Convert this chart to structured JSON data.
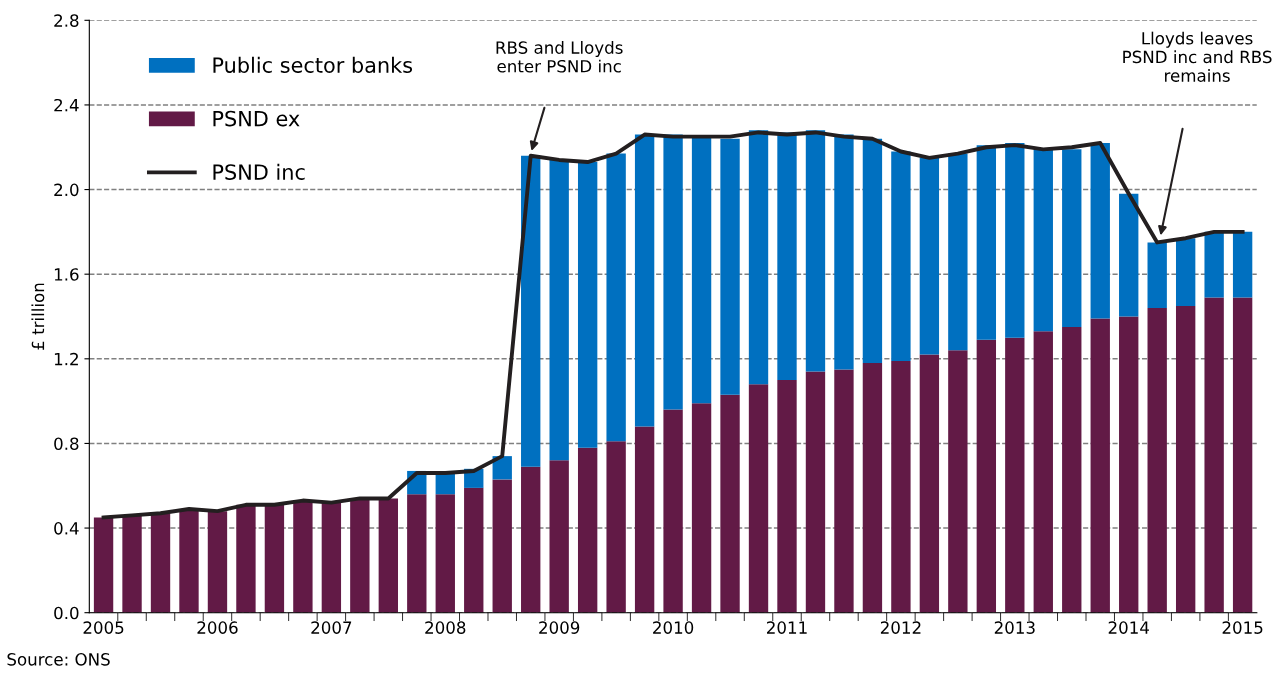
{
  "chart_data": {
    "type": "bar",
    "stacked": true,
    "ylabel": "£ trillion",
    "categories": [
      "2005",
      null,
      null,
      null,
      "2006",
      null,
      null,
      null,
      "2007",
      null,
      null,
      null,
      "2008",
      null,
      null,
      null,
      "2009",
      null,
      null,
      null,
      "2010",
      null,
      null,
      null,
      "2011",
      null,
      null,
      null,
      "2012",
      null,
      null,
      null,
      "2013",
      null,
      null,
      null,
      "2014",
      null,
      null,
      null,
      "2015"
    ],
    "series": [
      {
        "name": "PSND ex",
        "color": "#621a46",
        "values": [
          0.45,
          0.46,
          0.47,
          0.49,
          0.48,
          0.51,
          0.51,
          0.53,
          0.52,
          0.54,
          0.54,
          0.56,
          0.56,
          0.59,
          0.63,
          0.69,
          0.72,
          0.78,
          0.81,
          0.88,
          0.96,
          0.99,
          1.03,
          1.08,
          1.1,
          1.14,
          1.15,
          1.18,
          1.19,
          1.22,
          1.24,
          1.29,
          1.3,
          1.33,
          1.35,
          1.39,
          1.4,
          1.44,
          1.45,
          1.49,
          1.49
        ]
      },
      {
        "name": "Public sector banks",
        "color": "#0070c0",
        "values": [
          null,
          null,
          null,
          null,
          null,
          null,
          null,
          null,
          null,
          null,
          null,
          0.11,
          0.1,
          0.09,
          0.11,
          1.47,
          1.42,
          1.35,
          1.36,
          1.38,
          1.3,
          1.26,
          1.21,
          1.2,
          1.17,
          1.14,
          1.11,
          1.06,
          0.99,
          0.93,
          0.93,
          0.92,
          0.92,
          0.86,
          0.84,
          0.83,
          0.58,
          0.31,
          0.32,
          0.31,
          0.31
        ]
      },
      {
        "name": "PSND inc",
        "type": "line",
        "color": "#231f20",
        "values": [
          0.45,
          0.46,
          0.47,
          0.49,
          0.48,
          0.51,
          0.51,
          0.53,
          0.52,
          0.54,
          0.54,
          0.66,
          0.66,
          0.67,
          0.74,
          2.16,
          2.14,
          2.13,
          2.17,
          2.26,
          2.25,
          2.25,
          2.25,
          2.27,
          2.26,
          2.27,
          2.25,
          2.24,
          2.18,
          2.15,
          2.17,
          2.2,
          2.21,
          2.19,
          2.2,
          2.22,
          1.98,
          1.75,
          1.77,
          1.8,
          1.8
        ]
      }
    ],
    "ylim": [
      0,
      2.8
    ],
    "yticks": [
      {
        "value": 0,
        "label": "0.0"
      },
      0.4,
      0.8,
      1.2,
      1.6,
      {
        "value": 2,
        "label": "2.0"
      },
      2.4,
      2.8
    ],
    "grid": "y",
    "legend": "top left",
    "marker": "none",
    "line_style": "solid",
    "annotations": [
      "RBS and Lloyds\nenter PSND inc",
      "Lloyds leaves\nPSND inc and RBS\nremains",
      "Source: ONS"
    ]
  }
}
